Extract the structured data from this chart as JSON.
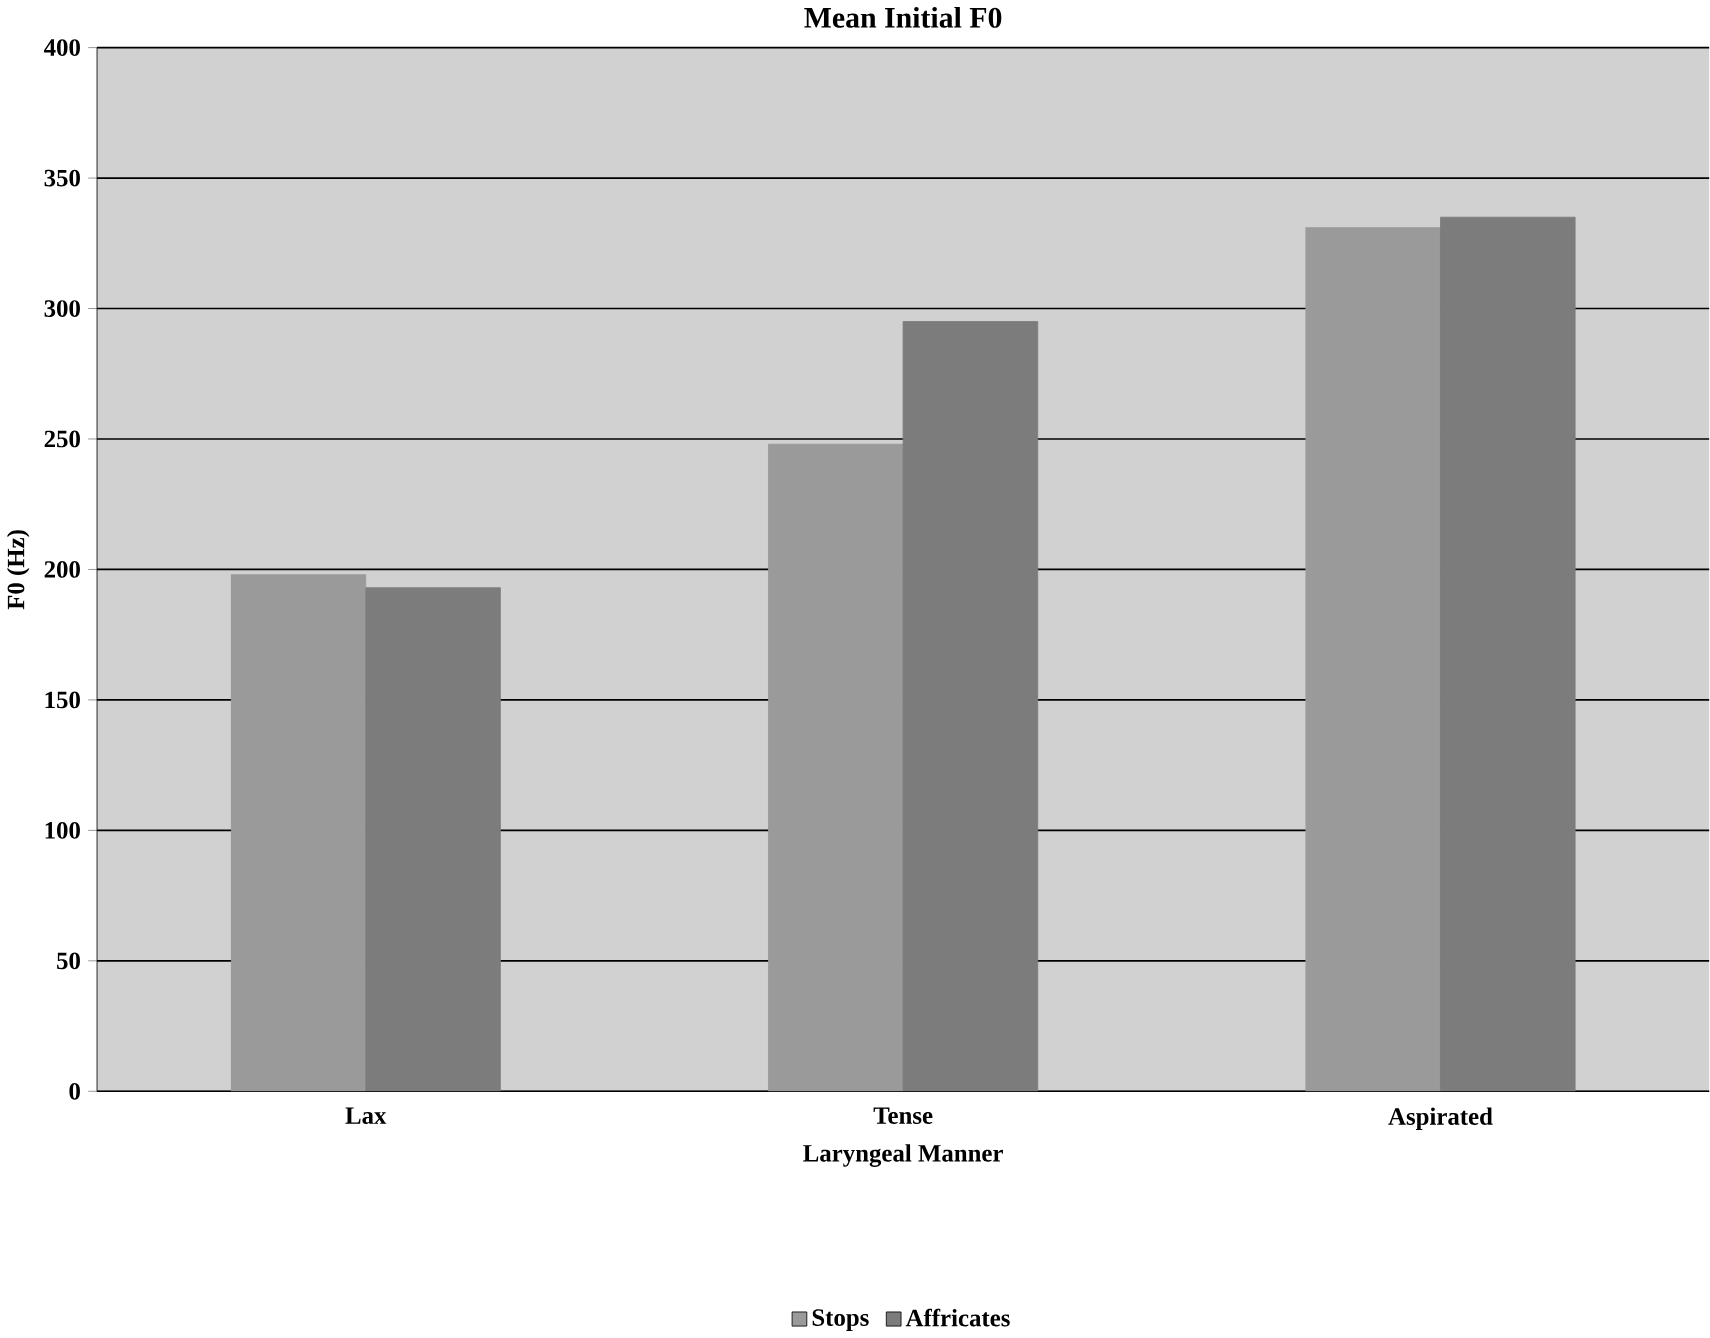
{
  "chart_data": {
    "type": "bar",
    "title": "Mean Initial F0",
    "xlabel": "Laryngeal Manner",
    "ylabel": "F0 (Hz)",
    "categories": [
      "Lax",
      "Tense",
      "Aspirated"
    ],
    "series": [
      {
        "name": "Stops",
        "color": "#9a9a9a",
        "values": [
          198,
          248,
          331
        ]
      },
      {
        "name": "Affricates",
        "color": "#7c7c7c",
        "values": [
          193,
          295,
          335
        ]
      }
    ],
    "ylim": [
      0,
      400
    ],
    "yticks": [
      0,
      50,
      100,
      150,
      200,
      250,
      300,
      350,
      400
    ],
    "grid": "y",
    "legend": "bottom"
  }
}
